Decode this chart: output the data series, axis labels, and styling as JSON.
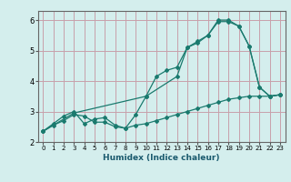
{
  "title": "",
  "xlabel": "Humidex (Indice chaleur)",
  "bg_color": "#d4eeed",
  "grid_color": "#c8a0aa",
  "line_color": "#1a7a6e",
  "xlim": [
    -0.5,
    23.5
  ],
  "ylim": [
    2.0,
    6.3
  ],
  "xticks": [
    0,
    1,
    2,
    3,
    4,
    5,
    6,
    7,
    8,
    9,
    10,
    11,
    12,
    13,
    14,
    15,
    16,
    17,
    18,
    19,
    20,
    21,
    22,
    23
  ],
  "yticks": [
    2,
    3,
    4,
    5,
    6
  ],
  "line1_x": [
    0,
    1,
    2,
    3,
    4,
    5,
    6,
    7,
    8,
    9,
    10,
    11,
    12,
    13,
    14,
    15,
    16,
    17,
    18,
    19,
    20,
    21,
    22,
    23
  ],
  "line1_y": [
    2.35,
    2.6,
    2.85,
    3.0,
    2.6,
    2.75,
    2.8,
    2.55,
    2.45,
    2.9,
    3.5,
    4.15,
    4.35,
    4.45,
    5.1,
    5.3,
    5.5,
    5.95,
    5.95,
    5.8,
    5.15,
    3.8,
    3.5,
    3.55
  ],
  "line2_x": [
    0,
    1,
    2,
    3,
    4,
    5,
    6,
    7,
    8,
    9,
    10,
    11,
    12,
    13,
    14,
    15,
    16,
    17,
    18,
    19,
    20,
    21,
    22,
    23
  ],
  "line2_y": [
    2.35,
    2.55,
    2.7,
    2.9,
    2.85,
    2.65,
    2.65,
    2.5,
    2.45,
    2.55,
    2.6,
    2.7,
    2.8,
    2.9,
    3.0,
    3.1,
    3.2,
    3.3,
    3.4,
    3.45,
    3.5,
    3.5,
    3.5,
    3.55
  ],
  "line3_x": [
    0,
    3,
    10,
    13,
    14,
    15,
    16,
    17,
    18,
    19,
    20,
    21,
    22,
    23
  ],
  "line3_y": [
    2.35,
    2.95,
    3.5,
    4.15,
    5.1,
    5.25,
    5.5,
    6.0,
    6.0,
    5.8,
    5.15,
    3.8,
    3.5,
    3.55
  ]
}
